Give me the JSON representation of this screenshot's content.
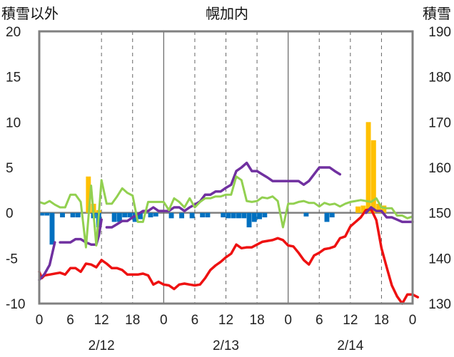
{
  "chart_data": {
    "type": "combo-bar-line",
    "title": "幌加内",
    "left_axis": {
      "label": "積雪以外",
      "min": -10,
      "max": 20,
      "ticks": [
        20,
        15,
        10,
        5,
        0,
        -5,
        -10
      ]
    },
    "right_axis": {
      "label": "積雪",
      "min": 130,
      "max": 190,
      "ticks": [
        190,
        180,
        170,
        160,
        150,
        140,
        130
      ]
    },
    "x_hours": {
      "min": 0,
      "max": 72
    },
    "x_tick_labels": [
      "0",
      "6",
      "12",
      "18",
      "0",
      "6",
      "12",
      "18",
      "0",
      "6",
      "12",
      "18",
      "0"
    ],
    "date_labels": [
      "2/12",
      "2/13",
      "2/14"
    ],
    "grid": "dashed vertical every 6h at 12/18 offsets; solid at day boundaries",
    "colors": {
      "temperature": "#ee1111",
      "snow_depth": "#7030a0",
      "wind_like": "#92d050",
      "precip": "#ffc000",
      "negative_bars": "#0070c0"
    },
    "series": [
      {
        "kind": "line",
        "axis": "left",
        "color": "#ee1111",
        "points": [
          [
            0,
            -6.5
          ],
          [
            0.5,
            -7.2
          ],
          [
            1,
            -6.9
          ],
          [
            2,
            -6.8
          ],
          [
            4,
            -6.6
          ],
          [
            5,
            -6.8
          ],
          [
            6,
            -6.1
          ],
          [
            7,
            -6.1
          ],
          [
            8,
            -6.5
          ],
          [
            9,
            -5.6
          ],
          [
            10,
            -5.7
          ],
          [
            11,
            -6.0
          ],
          [
            12,
            -5.2
          ],
          [
            13,
            -5.6
          ],
          [
            14,
            -6.1
          ],
          [
            15,
            -6.1
          ],
          [
            16,
            -6.3
          ],
          [
            17,
            -6.8
          ],
          [
            18,
            -6.8
          ],
          [
            19,
            -6.8
          ],
          [
            20,
            -6.7
          ],
          [
            21,
            -6.9
          ],
          [
            22,
            -7.9
          ],
          [
            23,
            -7.6
          ],
          [
            24,
            -7.9
          ],
          [
            25,
            -8.0
          ],
          [
            26,
            -8.4
          ],
          [
            27,
            -7.9
          ],
          [
            28,
            -7.8
          ],
          [
            29,
            -7.9
          ],
          [
            30,
            -8.0
          ],
          [
            31,
            -7.9
          ],
          [
            32,
            -7.2
          ],
          [
            33,
            -6.3
          ],
          [
            34,
            -5.8
          ],
          [
            35,
            -5.4
          ],
          [
            36,
            -4.9
          ],
          [
            37,
            -4.5
          ],
          [
            38,
            -3.5
          ],
          [
            39,
            -3.9
          ],
          [
            40,
            -3.8
          ],
          [
            41,
            -3.8
          ],
          [
            42,
            -3.5
          ],
          [
            43,
            -3.2
          ],
          [
            44,
            -3.1
          ],
          [
            45,
            -3.0
          ],
          [
            46,
            -2.8
          ],
          [
            47,
            -3.0
          ],
          [
            48,
            -3.6
          ],
          [
            49,
            -3.7
          ],
          [
            50,
            -4.4
          ],
          [
            51,
            -5.2
          ],
          [
            52,
            -5.7
          ],
          [
            53,
            -4.7
          ],
          [
            54,
            -4.4
          ],
          [
            55,
            -4.0
          ],
          [
            56,
            -3.9
          ],
          [
            57,
            -3.7
          ],
          [
            58,
            -2.8
          ],
          [
            59,
            -2.6
          ],
          [
            60,
            -1.5
          ],
          [
            61,
            -1.0
          ],
          [
            62,
            -0.5
          ],
          [
            63,
            0.3
          ],
          [
            64,
            0.4
          ],
          [
            65,
            -0.8
          ],
          [
            66,
            -3.9
          ],
          [
            67,
            -6.0
          ],
          [
            68,
            -8.0
          ],
          [
            69,
            -9.2
          ],
          [
            70,
            -10.0
          ],
          [
            71,
            -9.0
          ],
          [
            72,
            -9.0
          ],
          [
            73,
            -9.3
          ]
        ]
      },
      {
        "kind": "line",
        "axis": "right",
        "color": "#7030a0",
        "segments": [
          [
            [
              0,
              135.2
            ],
            [
              1,
              136.5
            ],
            [
              2,
              138.5
            ],
            [
              3,
              143.5
            ]
          ],
          [
            [
              4,
              143.5
            ],
            [
              5,
              143.5
            ],
            [
              6,
              143.5
            ],
            [
              7,
              144.2
            ],
            [
              8,
              144.2
            ],
            [
              9,
              143.5
            ],
            [
              10,
              143.0
            ],
            [
              11,
              143.0
            ],
            [
              11.5,
              145.0
            ],
            [
              12,
              148.5
            ]
          ],
          [
            [
              13,
              146.8
            ],
            [
              14,
              146.8
            ],
            [
              15,
              147.5
            ],
            [
              16,
              148.2
            ],
            [
              17,
              148.2
            ],
            [
              18,
              149.0
            ],
            [
              19,
              149.7
            ],
            [
              20,
              150.4
            ],
            [
              21,
              150.4
            ],
            [
              22,
              151.2
            ],
            [
              23,
              150.4
            ],
            [
              24,
              150.4
            ],
            [
              25,
              150.4
            ],
            [
              26,
              151.2
            ],
            [
              27,
              151.2
            ],
            [
              28,
              150.4
            ],
            [
              29,
              151.2
            ],
            [
              30,
              151.8
            ],
            [
              31,
              152.5
            ],
            [
              32,
              154.0
            ],
            [
              33,
              154.0
            ],
            [
              34,
              154.7
            ],
            [
              35,
              154.7
            ],
            [
              36,
              155.5
            ],
            [
              37,
              156.2
            ],
            [
              38,
              159.2
            ],
            [
              39,
              160.0
            ],
            [
              40,
              161.0
            ],
            [
              41,
              159.2
            ],
            [
              42,
              159.2
            ],
            [
              43,
              158.5
            ],
            [
              44,
              157.8
            ],
            [
              45,
              157.0
            ],
            [
              46,
              157.0
            ],
            [
              47,
              157.0
            ],
            [
              48,
              157.0
            ],
            [
              49,
              157.0
            ],
            [
              50,
              157.0
            ],
            [
              51,
              156.2
            ],
            [
              52,
              157.0
            ],
            [
              53,
              158.5
            ],
            [
              54,
              160.0
            ],
            [
              55,
              160.0
            ],
            [
              56,
              160.0
            ],
            [
              57,
              159.2
            ],
            [
              58,
              158.5
            ]
          ]
        ],
        "segments_tail": [
          [
            [
              63,
              150.0
            ],
            [
              64,
              151.2
            ],
            [
              65,
              150.4
            ],
            [
              66,
              150.4
            ],
            [
              67,
              149.0
            ],
            [
              68,
              149.0
            ],
            [
              69,
              148.5
            ],
            [
              70,
              148.0
            ],
            [
              71,
              148.0
            ],
            [
              72,
              148.0
            ]
          ]
        ]
      },
      {
        "kind": "line",
        "axis": "left",
        "color": "#92d050",
        "points": [
          [
            0,
            1.2
          ],
          [
            1,
            1.0
          ],
          [
            2,
            1.3
          ],
          [
            3,
            0.9
          ],
          [
            4,
            0.6
          ],
          [
            5,
            0.6
          ],
          [
            6,
            2.0
          ],
          [
            7,
            2.0
          ],
          [
            8,
            1.2
          ],
          [
            9,
            -3.8
          ],
          [
            10,
            3.0
          ],
          [
            11,
            -3.6
          ],
          [
            12,
            3.6
          ],
          [
            13,
            1.0
          ],
          [
            14,
            1.0
          ],
          [
            15,
            1.8
          ],
          [
            16,
            2.7
          ],
          [
            17,
            2.2
          ],
          [
            18,
            1.9
          ],
          [
            19,
            -1.0
          ],
          [
            20,
            -1.0
          ],
          [
            21,
            1.2
          ],
          [
            22,
            1.2
          ],
          [
            23,
            1.2
          ],
          [
            24,
            1.2
          ],
          [
            25,
            0.3
          ],
          [
            26,
            1.6
          ],
          [
            27,
            1.2
          ],
          [
            28,
            0.6
          ],
          [
            29,
            1.6
          ],
          [
            30,
            0.6
          ],
          [
            31,
            1.2
          ],
          [
            32,
            1.6
          ],
          [
            33,
            1.6
          ],
          [
            34,
            1.8
          ],
          [
            35,
            1.8
          ],
          [
            36,
            2.0
          ],
          [
            37,
            2.0
          ],
          [
            38,
            4.0
          ],
          [
            39,
            3.6
          ],
          [
            40,
            1.3
          ],
          [
            41,
            1.2
          ],
          [
            42,
            1.3
          ],
          [
            43,
            1.7
          ],
          [
            44,
            1.6
          ],
          [
            45,
            1.8
          ],
          [
            46,
            1.3
          ],
          [
            47,
            -1.6
          ],
          [
            48,
            1.0
          ],
          [
            49,
            1.0
          ],
          [
            50,
            1.2
          ],
          [
            51,
            1.3
          ],
          [
            52,
            1.1
          ],
          [
            53,
            1.1
          ],
          [
            54,
            0.7
          ],
          [
            55,
            1.1
          ],
          [
            56,
            0.9
          ],
          [
            57,
            1.0
          ],
          [
            58,
            0.7
          ],
          [
            59,
            1.0
          ],
          [
            60,
            1.2
          ],
          [
            61,
            1.3
          ],
          [
            62,
            1.4
          ],
          [
            63,
            1.3
          ],
          [
            64,
            1.2
          ],
          [
            65,
            1.6
          ],
          [
            66,
            0.6
          ],
          [
            67,
            0.5
          ],
          [
            68,
            0.5
          ],
          [
            69,
            -0.3
          ],
          [
            70,
            -0.3
          ],
          [
            71,
            -0.6
          ],
          [
            72,
            -0.4
          ]
        ]
      },
      {
        "kind": "bar",
        "axis": "left",
        "color": "#ffc000",
        "points": [
          [
            9,
            4.0
          ],
          [
            10,
            1.0
          ],
          [
            11,
            0.3
          ],
          [
            61,
            0.7
          ],
          [
            62,
            0.8
          ],
          [
            63,
            10.0
          ],
          [
            64,
            8.0
          ],
          [
            65,
            1.0
          ],
          [
            66,
            0.8
          ]
        ]
      },
      {
        "kind": "bar",
        "axis": "left",
        "color": "#0070c0",
        "points": [
          [
            0,
            -0.3
          ],
          [
            1,
            -0.3
          ],
          [
            2,
            -3.5
          ],
          [
            4,
            -0.5
          ],
          [
            6,
            -0.5
          ],
          [
            7,
            -0.5
          ],
          [
            10,
            -0.6
          ],
          [
            11,
            -1.6
          ],
          [
            14,
            -1.0
          ],
          [
            15,
            -1.0
          ],
          [
            16,
            -0.5
          ],
          [
            17,
            -0.5
          ],
          [
            18,
            -1.0
          ],
          [
            19,
            -0.7
          ],
          [
            21,
            -0.5
          ],
          [
            22,
            -0.4
          ],
          [
            25,
            -0.6
          ],
          [
            27,
            -0.6
          ],
          [
            29,
            -0.6
          ],
          [
            31,
            -0.5
          ],
          [
            32,
            -0.5
          ],
          [
            35,
            -0.5
          ],
          [
            36,
            -0.6
          ],
          [
            37,
            -0.6
          ],
          [
            38,
            -0.6
          ],
          [
            39,
            -0.6
          ],
          [
            40,
            -1.6
          ],
          [
            41,
            -1.0
          ],
          [
            42,
            -0.7
          ],
          [
            43,
            -0.5
          ],
          [
            51,
            -0.4
          ],
          [
            55,
            -1.0
          ],
          [
            56,
            -0.5
          ]
        ]
      }
    ]
  }
}
